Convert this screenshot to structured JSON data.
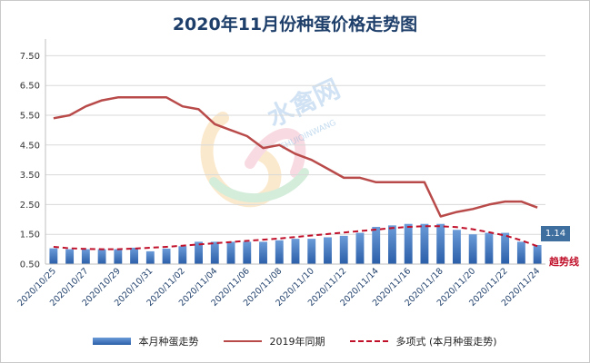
{
  "title": "2020年11月份种蛋价格走势图",
  "latest_label": "1.14",
  "trend_label": "趋势线",
  "watermark": {
    "text": "水禽网",
    "subtext": "SHUIQINWANG"
  },
  "colors": {
    "bar_top": "#6b9bd8",
    "bar_bottom": "#2a5ea8",
    "line_2019": "#b94a4a",
    "trend": "#c0102a",
    "grid": "#d9d9d9",
    "title": "#1f3f6b"
  },
  "legend": {
    "bars": "本月种蛋走势",
    "line": "2019年同期",
    "trend": "多项式 (本月种蛋走势)"
  },
  "chart_data": {
    "type": "bar",
    "title": "2020年11月份种蛋价格走势图",
    "ylim": [
      0.5,
      8.0
    ],
    "yticks": [
      "0.50",
      "1.50",
      "2.50",
      "3.50",
      "4.50",
      "5.50",
      "6.50",
      "7.50"
    ],
    "x_tick_labels": [
      "2020/10/25",
      "2020/10/27",
      "2020/10/29",
      "2020/10/31",
      "2020/11/02",
      "2020/11/04",
      "2020/11/06",
      "2020/11/08",
      "2020/11/10",
      "2020/11/12",
      "2020/11/14",
      "2020/11/16",
      "2020/11/18",
      "2020/11/20",
      "2020/11/22",
      "2020/11/24"
    ],
    "categories": [
      "2020/10/25",
      "2020/10/26",
      "2020/10/27",
      "2020/10/28",
      "2020/10/29",
      "2020/10/30",
      "2020/10/31",
      "2020/11/01",
      "2020/11/02",
      "2020/11/03",
      "2020/11/04",
      "2020/11/05",
      "2020/11/06",
      "2020/11/07",
      "2020/11/08",
      "2020/11/09",
      "2020/11/10",
      "2020/11/11",
      "2020/11/12",
      "2020/11/13",
      "2020/11/14",
      "2020/11/15",
      "2020/11/16",
      "2020/11/17",
      "2020/11/18",
      "2020/11/19",
      "2020/11/20",
      "2020/11/21",
      "2020/11/22",
      "2020/11/23",
      "2020/11/24"
    ],
    "series": [
      {
        "name": "本月种蛋走势",
        "kind": "bar",
        "values": [
          1.03,
          1.0,
          1.0,
          1.0,
          1.0,
          1.05,
          0.93,
          1.02,
          1.1,
          1.25,
          1.25,
          1.25,
          1.25,
          1.25,
          1.3,
          1.35,
          1.35,
          1.4,
          1.45,
          1.55,
          1.75,
          1.8,
          1.85,
          1.85,
          1.85,
          1.65,
          1.5,
          1.55,
          1.55,
          1.25,
          1.14
        ]
      },
      {
        "name": "2019年同期",
        "kind": "line",
        "values": [
          5.4,
          5.5,
          5.8,
          6.0,
          6.1,
          6.1,
          6.1,
          6.1,
          5.8,
          5.7,
          5.2,
          5.0,
          4.8,
          4.4,
          4.5,
          4.2,
          4.0,
          3.7,
          3.4,
          3.4,
          3.25,
          3.25,
          3.25,
          3.25,
          2.1,
          2.25,
          2.35,
          2.5,
          2.6,
          2.6,
          2.4
        ]
      },
      {
        "name": "多项式 (本月种蛋走势)",
        "kind": "trend",
        "values": [
          1.08,
          1.03,
          1.01,
          1.0,
          1.0,
          1.02,
          1.05,
          1.08,
          1.12,
          1.16,
          1.2,
          1.24,
          1.28,
          1.32,
          1.36,
          1.41,
          1.46,
          1.51,
          1.56,
          1.61,
          1.66,
          1.71,
          1.75,
          1.77,
          1.77,
          1.74,
          1.67,
          1.57,
          1.46,
          1.3,
          1.1
        ]
      }
    ]
  }
}
